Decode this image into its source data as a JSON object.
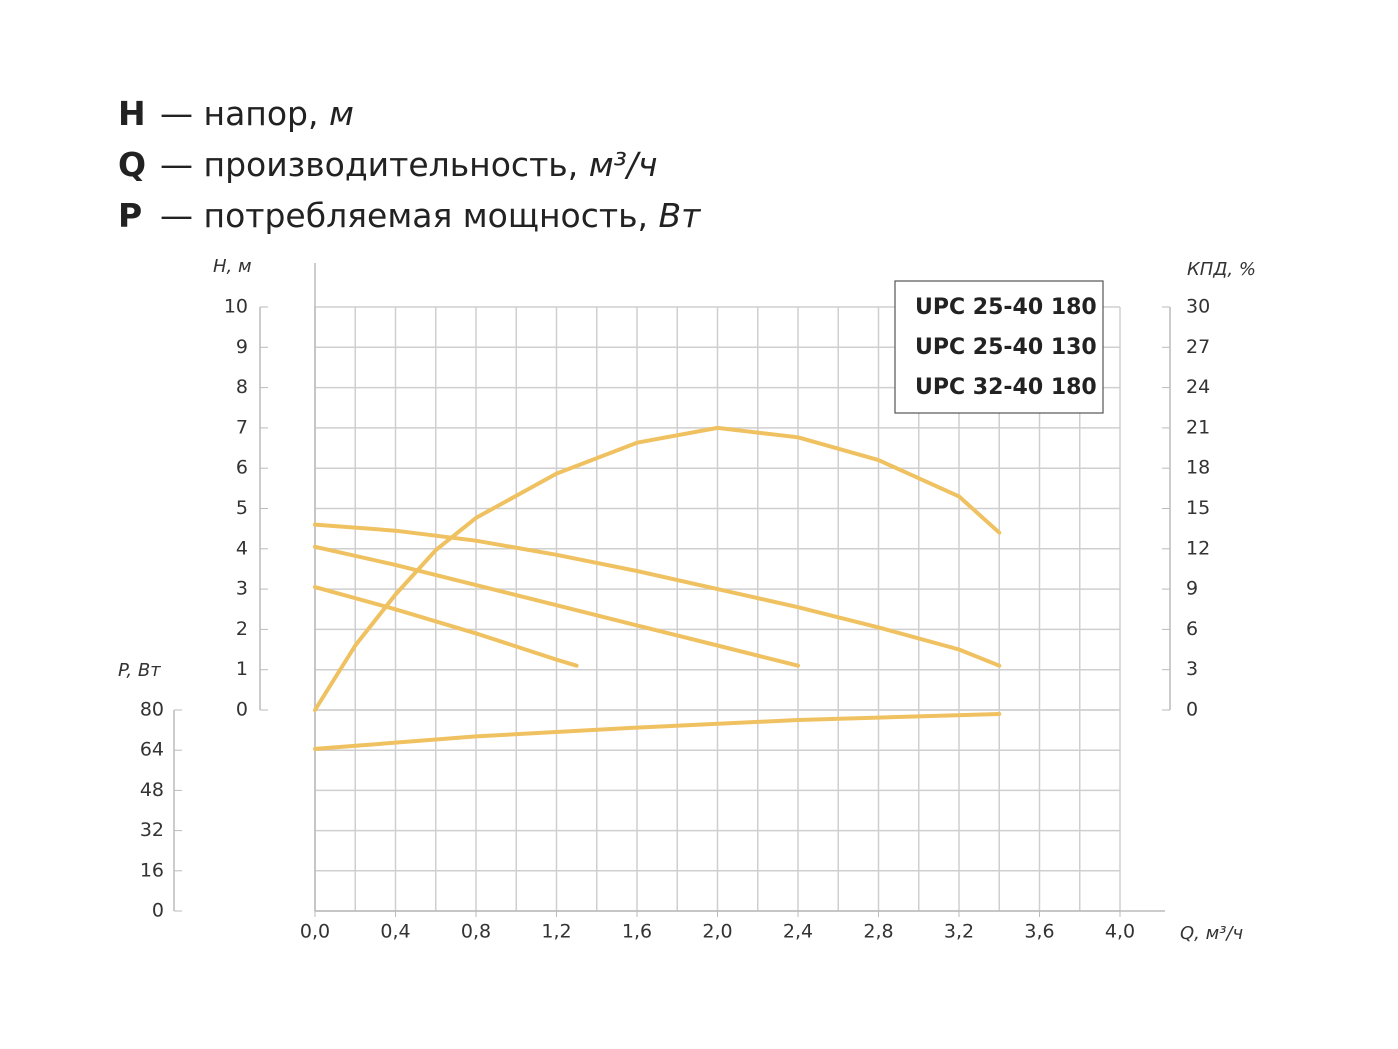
{
  "chart_data": {
    "type": "line",
    "definitions": [
      {
        "symbol": "H",
        "text": "— напор,",
        "unit": "м"
      },
      {
        "symbol": "Q",
        "text": "— производительность,",
        "unit": "м³/ч"
      },
      {
        "symbol": "P",
        "text": "— потребляемая мощность,",
        "unit": "Вт"
      }
    ],
    "ylabel": "H, м",
    "y2label": "КПД, %",
    "y3label": "P, Вт",
    "xlabel": "Q, м³/ч",
    "xlim": [
      0,
      4
    ],
    "xticks": [
      {
        "value": 0,
        "label": "0,0"
      },
      {
        "value": 0.4,
        "label": "0,4"
      },
      {
        "value": 0.8,
        "label": "0,8"
      },
      {
        "value": 1.2,
        "label": "1,2"
      },
      {
        "value": 1.6,
        "label": "1,6"
      },
      {
        "value": 2,
        "label": "2,0"
      },
      {
        "value": 2.4,
        "label": "2,4"
      },
      {
        "value": 2.8,
        "label": "2,8"
      },
      {
        "value": 3.2,
        "label": "3,2"
      },
      {
        "value": 3.6,
        "label": "3,6"
      },
      {
        "value": 4,
        "label": "4,0"
      }
    ],
    "ylim": [
      0,
      10
    ],
    "yticks": [
      0,
      1,
      2,
      3,
      4,
      5,
      6,
      7,
      8,
      9,
      10
    ],
    "y2lim": [
      0,
      30
    ],
    "y2ticks": [
      0,
      3,
      6,
      9,
      12,
      15,
      18,
      21,
      24,
      27,
      30
    ],
    "y3lim": [
      0,
      80
    ],
    "y3ticks": [
      0,
      16,
      32,
      48,
      64,
      80
    ],
    "grid": true,
    "legend": "top-right",
    "color": "#efc160",
    "series": [
      {
        "name": "UPC 25-40 180",
        "x": [
          0,
          0.4,
          0.8,
          1.2,
          1.6,
          2.0,
          2.4,
          2.8,
          3.2,
          3.4
        ],
        "values": [
          4.6,
          4.45,
          4.2,
          3.85,
          3.45,
          3.0,
          2.55,
          2.05,
          1.5,
          1.1
        ]
      },
      {
        "name": "UPC 25-40 130",
        "x": [
          0,
          0.4,
          0.8,
          1.2,
          1.6,
          2.0,
          2.4
        ],
        "values": [
          4.05,
          3.6,
          3.1,
          2.6,
          2.1,
          1.6,
          1.1
        ]
      },
      {
        "name": "UPC 32-40 180",
        "x": [
          0,
          0.4,
          0.8,
          1.2,
          1.3
        ],
        "values": [
          3.05,
          2.5,
          1.9,
          1.25,
          1.1
        ]
      },
      {
        "axis": "y2",
        "x": [
          0,
          0.2,
          0.4,
          0.6,
          0.8,
          1.2,
          1.6,
          2.0,
          2.4,
          2.8,
          3.2,
          3.4
        ],
        "values": [
          0,
          4.8,
          8.6,
          11.9,
          14.3,
          17.6,
          19.9,
          21,
          20.3,
          18.6,
          15.9,
          13.2
        ]
      },
      {
        "axis": "y3",
        "x": [
          0,
          0.8,
          1.6,
          2.4,
          3.4
        ],
        "values": [
          64.5,
          69.5,
          73,
          76,
          78.4
        ]
      }
    ]
  }
}
